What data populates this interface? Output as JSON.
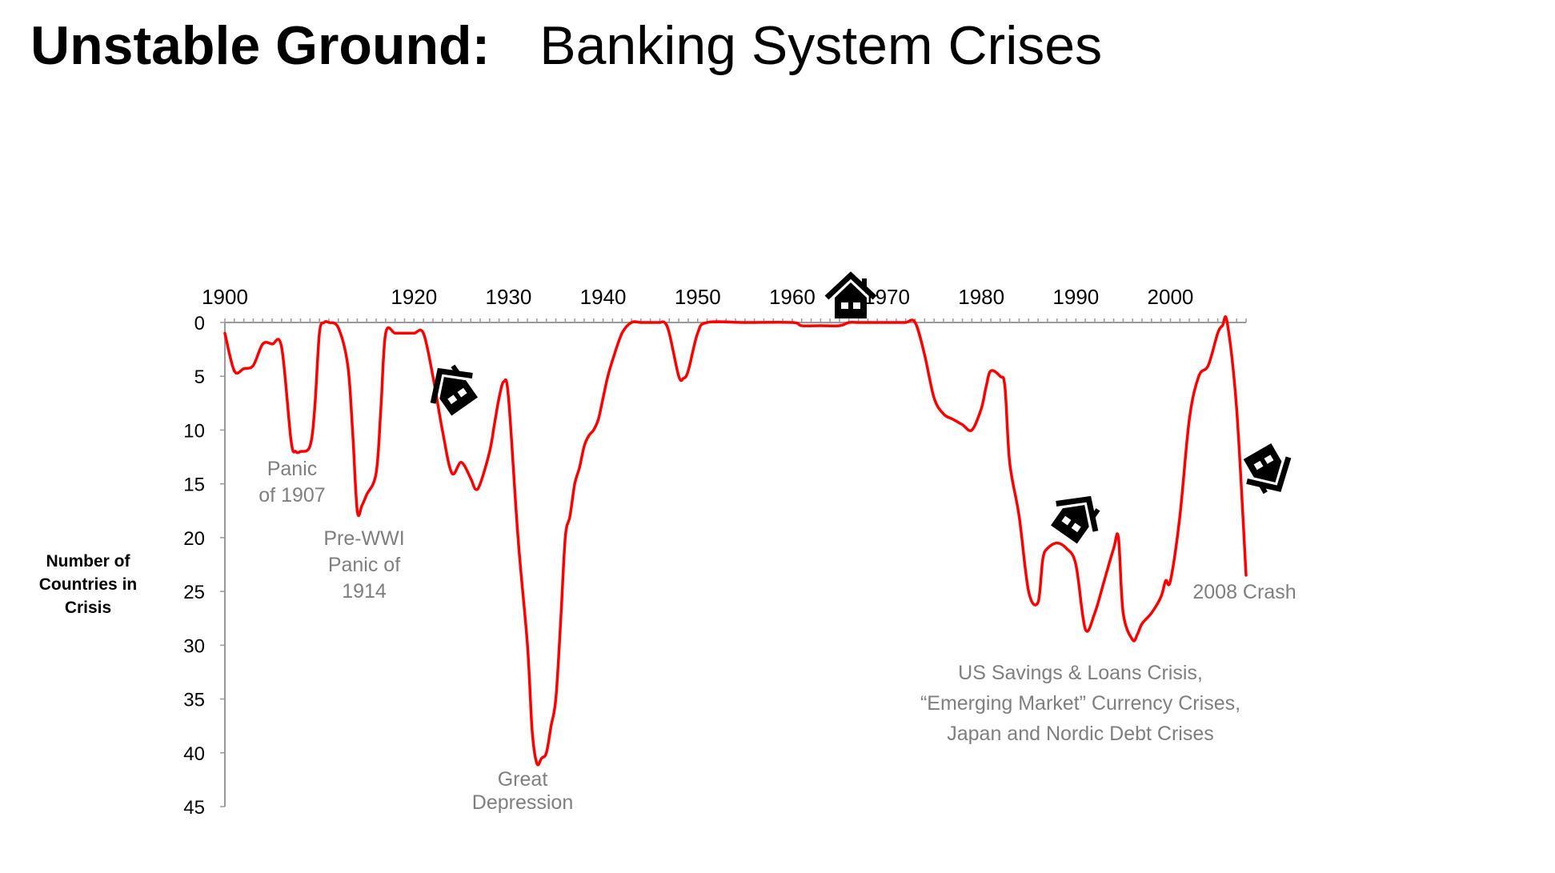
{
  "title": {
    "bold": "Unstable Ground:",
    "rest": "Banking System Crises"
  },
  "chart_data": {
    "type": "line",
    "ylabel": "Number of Countries in Crisis",
    "y_reversed": true,
    "ylim": [
      0,
      45
    ],
    "xlim": [
      1900,
      2008
    ],
    "x_ticks": [
      1900,
      1920,
      1930,
      1940,
      1950,
      1960,
      1970,
      1980,
      1990,
      2000
    ],
    "x_tick_labels": [
      "1900",
      "1920",
      "1930",
      "1940",
      "1950",
      "1960",
      "1970",
      "1980",
      "1990",
      "2000"
    ],
    "y_ticks": [
      0,
      5,
      10,
      15,
      20,
      25,
      30,
      35,
      40,
      45
    ],
    "y_tick_labels": [
      "0",
      "5",
      "10",
      "15",
      "20",
      "25",
      "30",
      "35",
      "40",
      "45"
    ],
    "series": [
      {
        "color": "#ff0000",
        "x": [
          1900,
          1901,
          1902,
          1903,
          1904,
          1905,
          1906,
          1907,
          1907.5,
          1908,
          1909,
          1909.5,
          1910,
          1910.5,
          1911,
          1912,
          1913,
          1913.5,
          1914,
          1914.5,
          1915,
          1916,
          1916.5,
          1917,
          1918,
          1919,
          1920,
          1921,
          1922,
          1923,
          1924,
          1925,
          1926,
          1926.5,
          1927,
          1928,
          1928.5,
          1929,
          1929.5,
          1930,
          1931,
          1932,
          1932.5,
          1933,
          1933.5,
          1934,
          1934.5,
          1935,
          1935.5,
          1936,
          1936.5,
          1937,
          1937.5,
          1938,
          1938.5,
          1939,
          1939.5,
          1940,
          1940.5,
          1941,
          1942,
          1943,
          1944,
          1945,
          1946,
          1946.5,
          1947,
          1948,
          1948.5,
          1949,
          1950,
          1951,
          1955,
          1960,
          1961,
          1963,
          1965,
          1966,
          1967,
          1968,
          1969,
          1970,
          1971,
          1972,
          1973,
          1974,
          1975,
          1976,
          1977,
          1978,
          1979,
          1980,
          1980.5,
          1981,
          1982,
          1982.5,
          1983,
          1984,
          1985,
          1986,
          1986.5,
          1987,
          1988,
          1989,
          1990,
          1991,
          1992,
          1993,
          1994,
          1994.5,
          1995,
          1996,
          1996.5,
          1997,
          1998,
          1999,
          1999.5,
          2000,
          2001,
          2002,
          2003,
          2004,
          2005,
          2005.5,
          2006,
          2007,
          2008
        ],
        "y": [
          1,
          4.5,
          4.3,
          4,
          2,
          2,
          2.3,
          11,
          12,
          12,
          11.5,
          8,
          1,
          0,
          0,
          0.5,
          4,
          10,
          17.5,
          17,
          16,
          14,
          8,
          1,
          1,
          1,
          1,
          1,
          5,
          10,
          14,
          13,
          14.5,
          15.5,
          15,
          12,
          9.5,
          7,
          5.5,
          7,
          20,
          30,
          38,
          41,
          40.5,
          40,
          37.5,
          35,
          28,
          20,
          18,
          15,
          13.5,
          11.5,
          10.5,
          10,
          9,
          7,
          5,
          3.5,
          1,
          0,
          0,
          0,
          0,
          0,
          1,
          5,
          5.2,
          4.5,
          1,
          0,
          0,
          0,
          0.3,
          0.3,
          0.3,
          0,
          0,
          0,
          0,
          0,
          0,
          0,
          0,
          3,
          7,
          8.5,
          9,
          9.5,
          10,
          8,
          6,
          4.5,
          5,
          6,
          13,
          18,
          25,
          26,
          22,
          21,
          20.5,
          21,
          22.5,
          28.5,
          27,
          24,
          21,
          20,
          27,
          29.5,
          29,
          28,
          27,
          25.5,
          24,
          24,
          18,
          9,
          5,
          4,
          1,
          0.3,
          0,
          8,
          23.5
        ]
      }
    ],
    "annotations": [
      {
        "lines": [
          "Panic",
          "of 1907"
        ]
      },
      {
        "lines": [
          "Pre-WWI",
          "Panic of",
          "1914"
        ]
      },
      {
        "lines": [
          "Great",
          "Depression"
        ]
      },
      {
        "lines": [
          "US Savings & Loans Crisis,",
          "“Emerging Market” Currency Crises,",
          "Japan and Nordic Debt Crises"
        ]
      },
      {
        "lines": [
          "2008 Crash"
        ]
      }
    ],
    "grid": false,
    "legend": "none"
  },
  "icons": [
    "house-icon",
    "house-icon",
    "house-icon",
    "house-icon",
    "house-icon"
  ]
}
